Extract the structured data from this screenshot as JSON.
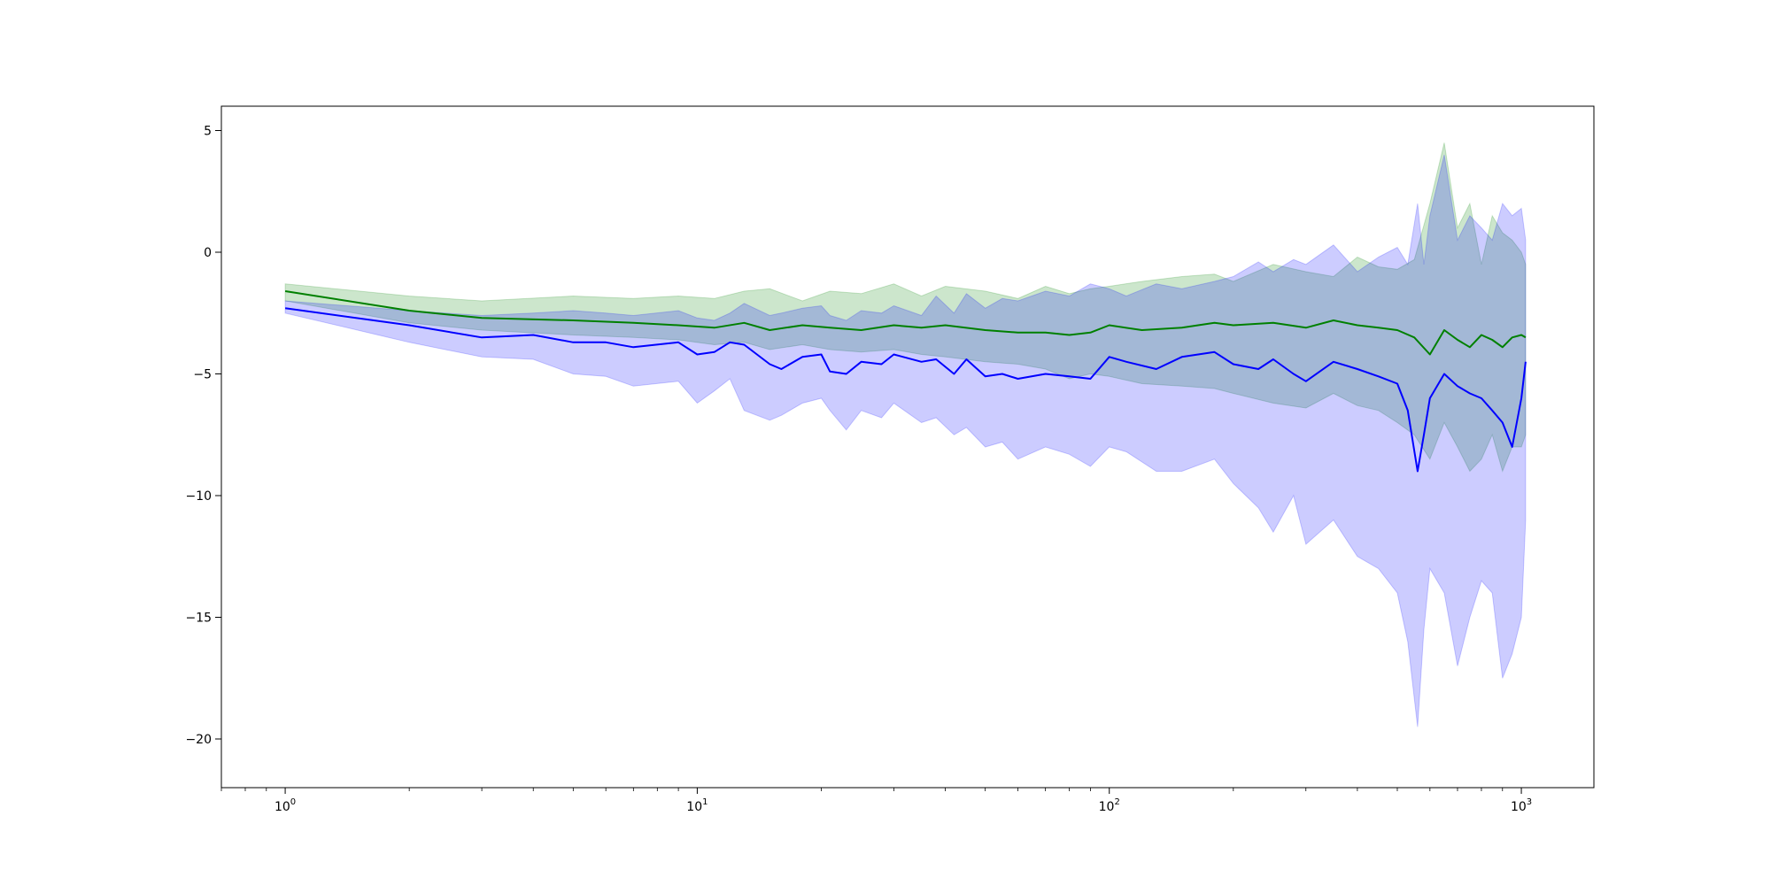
{
  "chart_data": {
    "type": "line",
    "title": "",
    "xlabel": "",
    "ylabel": "",
    "xscale": "log",
    "xlim": [
      0.7,
      1500
    ],
    "ylim": [
      -22,
      6
    ],
    "xticks": [
      {
        "value": 1,
        "base": "10",
        "exponent": "0"
      },
      {
        "value": 10,
        "base": "10",
        "exponent": "1"
      },
      {
        "value": 100,
        "base": "10",
        "exponent": "2"
      },
      {
        "value": 1000,
        "base": "10",
        "exponent": "3"
      }
    ],
    "yticks": [
      {
        "value": 5,
        "label": "5"
      },
      {
        "value": 0,
        "label": "0"
      },
      {
        "value": -5,
        "label": "−5"
      },
      {
        "value": -10,
        "label": "−10"
      },
      {
        "value": -15,
        "label": "−15"
      },
      {
        "value": -20,
        "label": "−20"
      }
    ],
    "grid": false,
    "legend": "none",
    "series": [
      {
        "color": "#008000",
        "band_opacity": 0.2,
        "x": [
          1,
          2,
          3,
          5,
          7,
          9,
          11,
          13,
          15,
          18,
          21,
          25,
          30,
          35,
          40,
          50,
          60,
          70,
          80,
          90,
          100,
          120,
          150,
          180,
          200,
          250,
          300,
          350,
          400,
          450,
          500,
          550,
          600,
          650,
          700,
          750,
          800,
          850,
          900,
          950,
          1000,
          1024
        ],
        "y": [
          -1.6,
          -2.4,
          -2.7,
          -2.8,
          -2.9,
          -3.0,
          -3.1,
          -2.9,
          -3.2,
          -3.0,
          -3.1,
          -3.2,
          -3.0,
          -3.1,
          -3.0,
          -3.2,
          -3.3,
          -3.3,
          -3.4,
          -3.3,
          -3.0,
          -3.2,
          -3.1,
          -2.9,
          -3.0,
          -2.9,
          -3.1,
          -2.8,
          -3.0,
          -3.1,
          -3.2,
          -3.5,
          -4.2,
          -3.2,
          -3.6,
          -3.9,
          -3.4,
          -3.6,
          -3.9,
          -3.5,
          -3.4,
          -3.5
        ],
        "upper": [
          -1.3,
          -1.8,
          -2.0,
          -1.8,
          -1.9,
          -1.8,
          -1.9,
          -1.6,
          -1.5,
          -2.0,
          -1.6,
          -1.7,
          -1.3,
          -1.8,
          -1.4,
          -1.6,
          -1.9,
          -1.4,
          -1.7,
          -1.5,
          -1.4,
          -1.2,
          -1.0,
          -0.9,
          -1.2,
          -0.5,
          -0.8,
          -1.0,
          -0.2,
          -0.6,
          -0.7,
          -0.3,
          2.0,
          4.5,
          1.0,
          2.0,
          -0.5,
          1.5,
          0.8,
          0.5,
          0.0,
          -0.5
        ],
        "lower": [
          -2.0,
          -2.9,
          -3.2,
          -3.4,
          -3.5,
          -3.6,
          -3.8,
          -3.7,
          -4.0,
          -3.8,
          -4.0,
          -4.1,
          -4.0,
          -4.2,
          -4.3,
          -4.5,
          -4.6,
          -4.8,
          -5.2,
          -5.0,
          -5.1,
          -5.4,
          -5.5,
          -5.6,
          -5.8,
          -6.2,
          -6.4,
          -5.8,
          -6.3,
          -6.5,
          -7.0,
          -7.5,
          -8.5,
          -7.0,
          -8.0,
          -9.0,
          -8.5,
          -7.5,
          -9.0,
          -8.0,
          -8.0,
          -7.5
        ]
      },
      {
        "color": "#0000ff",
        "band_opacity": 0.2,
        "x": [
          1,
          2,
          3,
          4,
          5,
          6,
          7,
          9,
          10,
          11,
          12,
          13,
          15,
          16,
          18,
          20,
          21,
          23,
          25,
          28,
          30,
          35,
          38,
          42,
          45,
          50,
          55,
          60,
          70,
          80,
          90,
          100,
          110,
          130,
          150,
          180,
          200,
          230,
          250,
          280,
          300,
          350,
          400,
          450,
          500,
          530,
          560,
          580,
          600,
          650,
          700,
          750,
          800,
          850,
          900,
          950,
          1000,
          1024
        ],
        "y": [
          -2.3,
          -3.0,
          -3.5,
          -3.4,
          -3.7,
          -3.7,
          -3.9,
          -3.7,
          -4.2,
          -4.1,
          -3.7,
          -3.8,
          -4.6,
          -4.8,
          -4.3,
          -4.2,
          -4.9,
          -5.0,
          -4.5,
          -4.6,
          -4.2,
          -4.5,
          -4.4,
          -5.0,
          -4.4,
          -5.1,
          -5.0,
          -5.2,
          -5.0,
          -5.1,
          -5.2,
          -4.3,
          -4.5,
          -4.8,
          -4.3,
          -4.1,
          -4.6,
          -4.8,
          -4.4,
          -5.0,
          -5.3,
          -4.5,
          -4.8,
          -5.1,
          -5.4,
          -6.5,
          -9.0,
          -7.5,
          -6.0,
          -5.0,
          -5.5,
          -5.8,
          -6.0,
          -6.5,
          -7.0,
          -8.0,
          -6.0,
          -4.5
        ],
        "upper": [
          -2.0,
          -2.4,
          -2.6,
          -2.5,
          -2.4,
          -2.5,
          -2.6,
          -2.4,
          -2.7,
          -2.8,
          -2.5,
          -2.1,
          -2.6,
          -2.5,
          -2.3,
          -2.2,
          -2.6,
          -2.8,
          -2.4,
          -2.5,
          -2.2,
          -2.6,
          -1.8,
          -2.5,
          -1.7,
          -2.3,
          -1.9,
          -2.0,
          -1.6,
          -1.8,
          -1.3,
          -1.5,
          -1.8,
          -1.3,
          -1.5,
          -1.2,
          -1.0,
          -0.4,
          -0.8,
          -0.3,
          -0.5,
          0.3,
          -0.8,
          -0.2,
          0.2,
          -0.5,
          2.0,
          -0.5,
          1.5,
          4.0,
          0.5,
          1.5,
          1.0,
          0.5,
          2.0,
          1.5,
          1.8,
          0.5
        ],
        "lower": [
          -2.5,
          -3.7,
          -4.3,
          -4.4,
          -5.0,
          -5.1,
          -5.5,
          -5.3,
          -6.2,
          -5.7,
          -5.2,
          -6.5,
          -6.9,
          -6.7,
          -6.2,
          -6.0,
          -6.5,
          -7.3,
          -6.5,
          -6.8,
          -6.2,
          -7.0,
          -6.8,
          -7.5,
          -7.2,
          -8.0,
          -7.8,
          -8.5,
          -8.0,
          -8.3,
          -8.8,
          -8.0,
          -8.2,
          -9.0,
          -9.0,
          -8.5,
          -9.5,
          -10.5,
          -11.5,
          -10.0,
          -12.0,
          -11.0,
          -12.5,
          -13.0,
          -14.0,
          -16.0,
          -19.5,
          -15.5,
          -13.0,
          -14.0,
          -17.0,
          -15.0,
          -13.5,
          -14.0,
          -17.5,
          -16.5,
          -15.0,
          -11.0
        ]
      }
    ]
  }
}
